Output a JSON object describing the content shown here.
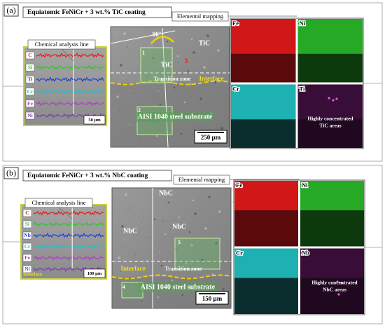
{
  "panels": [
    {
      "label": "(a)",
      "title": "Equiatomic FeNiCr + 3 wt.% TiC coating",
      "mapping_label": "Elemental mapping",
      "line_scan": {
        "title": "Chemical analysis line",
        "elements": [
          "C",
          "Si",
          "Ti",
          "Cr",
          "Fe",
          "Ni"
        ],
        "scale": "50 µm"
      },
      "sem": {
        "labels": [
          "90°",
          "1",
          "2",
          "3",
          "TiC",
          "TiC",
          "Transition zone",
          "Interface",
          "AISI 1040 steel substrate"
        ],
        "scale": "250 µm"
      },
      "maps": [
        "Fe",
        "Ni",
        "Cr",
        "Ti"
      ],
      "maps_note": [
        "Highly concentrated",
        "TiC areas"
      ]
    },
    {
      "label": "(b)",
      "title": "Equiatomic FeNiCr + 3 wt.% NbC coating",
      "mapping_label": "Elemental mapping",
      "line_scan": {
        "title": "Chemical analysis line",
        "elements": [
          "C",
          "Si",
          "Nb",
          "Cr",
          "Fe",
          "Ni"
        ],
        "scale": "100 µm",
        "interface": "Interface"
      },
      "sem": {
        "labels": [
          "NbC",
          "NbC",
          "NbC",
          "5",
          "4",
          "Interface",
          "Transition zone",
          "AISI 1040 steel substrate"
        ],
        "scale": "150 µm"
      },
      "maps": [
        "Fe",
        "Ni",
        "Cr",
        "Nb"
      ],
      "maps_note": [
        "Highly concentrated",
        "NbC areas"
      ]
    }
  ]
}
